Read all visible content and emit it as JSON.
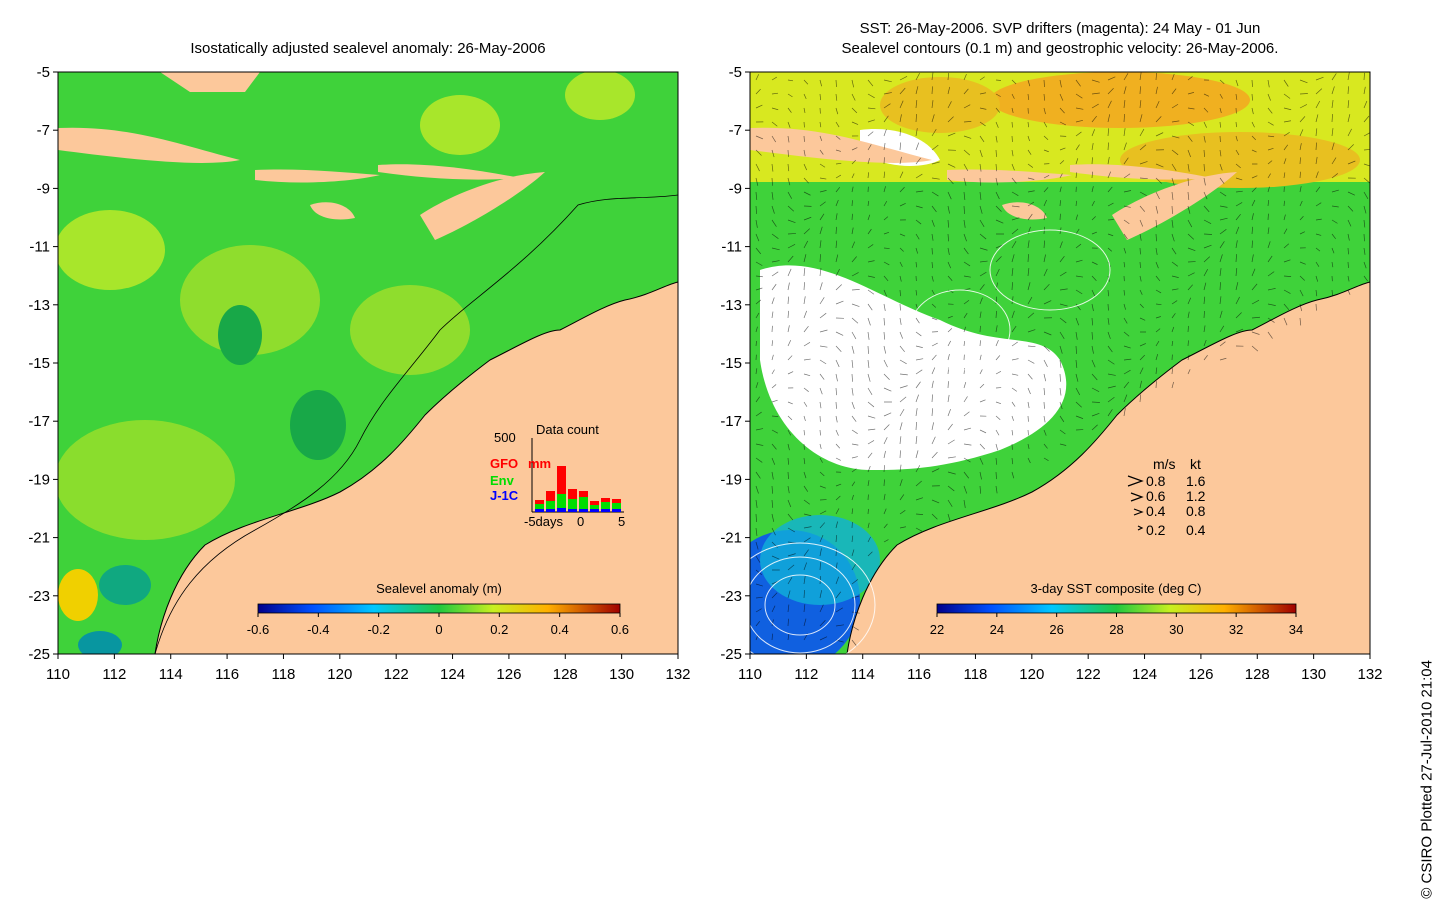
{
  "left_panel": {
    "title": "Isostatically adjusted sealevel anomaly: 26-May-2006",
    "colorbar": {
      "label": "Sealevel anomaly (m)",
      "ticks": [
        "-0.6",
        "-0.4",
        "-0.2",
        "0",
        "0.2",
        "0.4",
        "0.6"
      ]
    },
    "inset": {
      "title": "Data count",
      "ymax_label": "500",
      "series": [
        {
          "name": "GFO",
          "color": "#ff0000"
        },
        {
          "name": "Env",
          "color": "#00dd00"
        },
        {
          "name": "J-1C",
          "color": "#0000ff"
        }
      ],
      "mm_label": "mm",
      "x_labels": [
        "-5days",
        "0",
        "5"
      ]
    }
  },
  "right_panel": {
    "title_line1": "SST: 26-May-2006. SVP drifters (magenta): 24 May - 01 Jun",
    "title_line2": "Sealevel contours (0.1 m) and geostrophic velocity: 26-May-2006.",
    "colorbar": {
      "label": "3-day SST composite (deg C)",
      "ticks": [
        "22",
        "24",
        "26",
        "28",
        "30",
        "32",
        "34"
      ]
    },
    "velocity_legend": {
      "header_ms": "m/s",
      "header_kt": "kt",
      "rows": [
        {
          "ms": "0.8",
          "kt": "1.6"
        },
        {
          "ms": "0.6",
          "kt": "1.2"
        },
        {
          "ms": "0.4",
          "kt": "0.8"
        },
        {
          "ms": "0.2",
          "kt": "0.4"
        }
      ]
    }
  },
  "axes": {
    "lon_ticks": [
      "110",
      "112",
      "114",
      "116",
      "118",
      "120",
      "122",
      "124",
      "126",
      "128",
      "130",
      "132"
    ],
    "lat_ticks": [
      "-5",
      "-7",
      "-9",
      "-11",
      "-13",
      "-15",
      "-17",
      "-19",
      "-21",
      "-23",
      "-25"
    ]
  },
  "credit": "© CSIRO Plotted 27-Jul-2010 21:04",
  "colors": {
    "land": "#fcc89b",
    "ocean_base": "#3fd23a",
    "cloud": "#ffffff"
  }
}
